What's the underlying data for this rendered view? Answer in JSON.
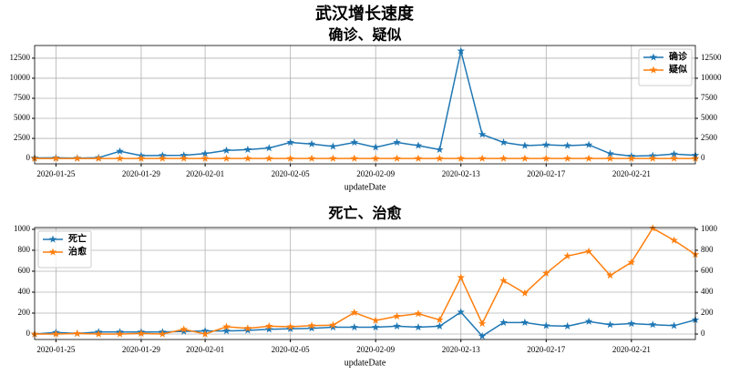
{
  "title": "武汉增长速度",
  "chart_data": [
    {
      "type": "line",
      "title": "确诊、疑似",
      "xlabel": "updateDate",
      "grid": true,
      "legend": "upper right",
      "x": [
        "2020-01-24",
        "2020-01-25",
        "2020-01-26",
        "2020-01-27",
        "2020-01-28",
        "2020-01-29",
        "2020-01-30",
        "2020-01-31",
        "2020-02-01",
        "2020-02-02",
        "2020-02-03",
        "2020-02-04",
        "2020-02-05",
        "2020-02-06",
        "2020-02-07",
        "2020-02-08",
        "2020-02-09",
        "2020-02-10",
        "2020-02-11",
        "2020-02-12",
        "2020-02-13",
        "2020-02-14",
        "2020-02-15",
        "2020-02-16",
        "2020-02-17",
        "2020-02-18",
        "2020-02-19",
        "2020-02-20",
        "2020-02-21",
        "2020-02-22",
        "2020-02-23",
        "2020-02-24"
      ],
      "xticks": [
        "2020-01-25",
        "2020-01-29",
        "2020-02-01",
        "2020-02-05",
        "2020-02-09",
        "2020-02-13",
        "2020-02-17",
        "2020-02-21"
      ],
      "ylim": [
        -670,
        14080
      ],
      "yticks": [
        0,
        2500,
        5000,
        7500,
        10000,
        12500
      ],
      "y2lim": [
        -670,
        14080
      ],
      "y2ticks": [
        0,
        2500,
        5000,
        7500,
        10000,
        12500
      ],
      "series": [
        {
          "name": "确诊",
          "color": "#1f77b4",
          "values": [
            70,
            80,
            50,
            100,
            900,
            350,
            380,
            400,
            600,
            1000,
            1100,
            1300,
            2000,
            1800,
            1500,
            2000,
            1400,
            2000,
            1600,
            1100,
            13400,
            3000,
            2000,
            1600,
            1700,
            1600,
            1700,
            600,
            300,
            350,
            550,
            400
          ]
        },
        {
          "name": "疑似",
          "color": "#ff7f0e",
          "values": [
            0,
            0,
            0,
            0,
            0,
            0,
            0,
            0,
            0,
            0,
            0,
            0,
            0,
            0,
            0,
            0,
            0,
            0,
            0,
            0,
            0,
            0,
            0,
            0,
            0,
            0,
            0,
            0,
            0,
            0,
            0,
            0
          ]
        }
      ]
    },
    {
      "type": "line",
      "title": "死亡、治愈",
      "xlabel": "updateDate",
      "grid": true,
      "legend": "upper left",
      "x": [
        "2020-01-24",
        "2020-01-25",
        "2020-01-26",
        "2020-01-27",
        "2020-01-28",
        "2020-01-29",
        "2020-01-30",
        "2020-01-31",
        "2020-02-01",
        "2020-02-02",
        "2020-02-03",
        "2020-02-04",
        "2020-02-05",
        "2020-02-06",
        "2020-02-07",
        "2020-02-08",
        "2020-02-09",
        "2020-02-10",
        "2020-02-11",
        "2020-02-12",
        "2020-02-13",
        "2020-02-14",
        "2020-02-15",
        "2020-02-16",
        "2020-02-17",
        "2020-02-18",
        "2020-02-19",
        "2020-02-20",
        "2020-02-21",
        "2020-02-22",
        "2020-02-23",
        "2020-02-24"
      ],
      "xticks": [
        "2020-01-25",
        "2020-01-29",
        "2020-02-01",
        "2020-02-05",
        "2020-02-09",
        "2020-02-13",
        "2020-02-17",
        "2020-02-21"
      ],
      "ylim": [
        -52,
        1017
      ],
      "yticks": [
        0,
        200,
        400,
        600,
        800,
        1000
      ],
      "y2lim": [
        -52,
        1017
      ],
      "y2ticks": [
        0,
        200,
        400,
        600,
        800,
        1000
      ],
      "series": [
        {
          "name": "死亡",
          "color": "#1f77b4",
          "values": [
            0,
            15,
            5,
            20,
            20,
            20,
            20,
            25,
            30,
            30,
            35,
            45,
            50,
            55,
            65,
            65,
            65,
            75,
            65,
            75,
            210,
            -20,
            110,
            110,
            80,
            75,
            120,
            90,
            100,
            90,
            80,
            135
          ]
        },
        {
          "name": "治愈",
          "color": "#ff7f0e",
          "values": [
            0,
            0,
            5,
            0,
            0,
            5,
            0,
            45,
            0,
            70,
            55,
            75,
            70,
            80,
            85,
            205,
            130,
            170,
            195,
            135,
            540,
            100,
            510,
            390,
            580,
            745,
            790,
            560,
            685,
            1010,
            895,
            760
          ]
        }
      ]
    }
  ]
}
